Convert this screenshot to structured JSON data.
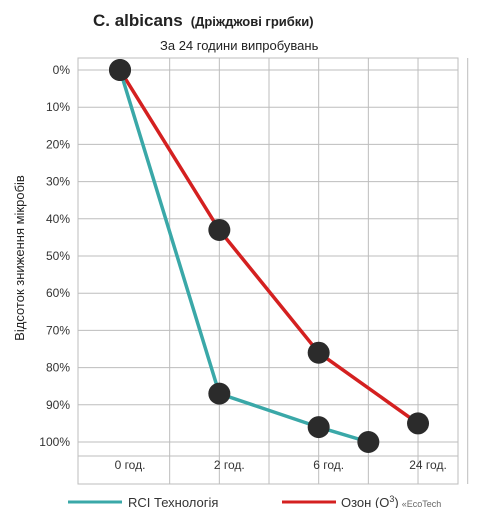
{
  "chart_data": {
    "type": "line",
    "title_bold": "C. albicans",
    "title_rest": "(Дріжджові грибки)",
    "subtitle": "За 24 години випробувань",
    "ylabel": "Відсоток зниження мікробів",
    "categories": [
      "0 год.",
      "2 год.",
      "6 год.",
      "24 год."
    ],
    "yticks": [
      "0%",
      "10%",
      "20%",
      "30%",
      "40%",
      "50%",
      "60%",
      "70%",
      "80%",
      "90%",
      "100%"
    ],
    "ylim": [
      0,
      100
    ],
    "y_inverted": true,
    "grid": true,
    "legend_position": "bottom",
    "series": [
      {
        "name": "RCI Технологія",
        "color": "#3aa8a8",
        "points": [
          {
            "x": 0,
            "y": 0
          },
          {
            "x": 2,
            "y": 87
          },
          {
            "x": 4,
            "y": 96
          },
          {
            "x": 5,
            "y": 100
          }
        ]
      },
      {
        "name": "Озон (О",
        "name_sup": "3",
        "name_suffix": ")",
        "name_brand": "«EcoTech",
        "color": "#d42020",
        "points": [
          {
            "x": 0,
            "y": 0
          },
          {
            "x": 2,
            "y": 43
          },
          {
            "x": 4,
            "y": 76
          },
          {
            "x": 6,
            "y": 95
          }
        ]
      }
    ],
    "marker_color": "#2b2b2b"
  }
}
